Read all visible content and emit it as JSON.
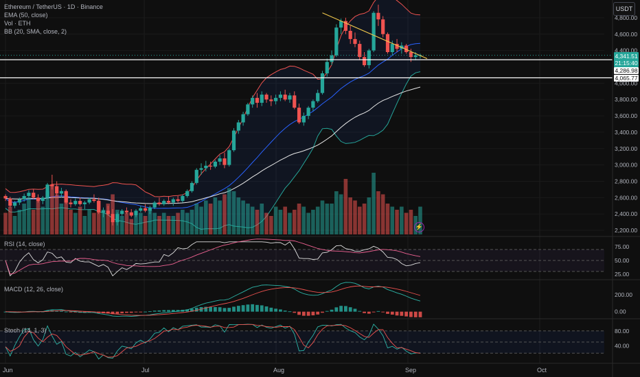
{
  "header": {
    "symbol_line": "Ethereum / TetherUS · 1D · Binance",
    "indicator_lines": [
      "EMA (50, close)",
      "Vol · ETH",
      "BB (20, SMA, close, 2)"
    ],
    "currency_button": "USDT"
  },
  "price_badges": {
    "last_price": "4,341.51",
    "countdown": "21:15:40",
    "line_upper": "4,286.98",
    "line_lower": "4,065.77"
  },
  "panes": {
    "rsi_title": "RSI (14, close)",
    "macd_title": "MACD (12, 26, close)",
    "stoch_title": "Stoch (14, 1, 3)"
  },
  "colors": {
    "background": "#0f0f0f",
    "up": "#26a69a",
    "down": "#ef5350",
    "bb_band": "#ef5350",
    "bb_lower": "#26a69a",
    "bb_basis": "#2962ff",
    "ema": "#e8e8e8",
    "trendline": "#f2c94c",
    "rsi_line": "#e0e0e0",
    "rsi_signal": "#f06292",
    "stoch_k": "#2db5a8",
    "stoch_d": "#ef5350"
  },
  "chart_data": {
    "type": "candlestick",
    "price_axis": {
      "ticks": [
        "4,800.00",
        "4,600.00",
        "4,400.00",
        "4,000.00",
        "3,800.00",
        "3,600.00",
        "3,400.00",
        "3,200.00",
        "3,000.00",
        "2,800.00",
        "2,600.00",
        "2,400.00",
        "2,200.00"
      ],
      "range": [
        2150,
        4950
      ]
    },
    "time_axis": {
      "ticks": [
        "Jun",
        "Jul",
        "Aug",
        "Sep",
        "Oct"
      ]
    },
    "horizontal_levels": [
      4286.98,
      4065.77
    ],
    "candles": [
      [
        2620,
        2640,
        2560,
        2590
      ],
      [
        2590,
        2610,
        2480,
        2500
      ],
      [
        2500,
        2560,
        2470,
        2540
      ],
      [
        2540,
        2600,
        2510,
        2580
      ],
      [
        2580,
        2650,
        2550,
        2620
      ],
      [
        2620,
        2690,
        2600,
        2660
      ],
      [
        2660,
        2700,
        2580,
        2600
      ],
      [
        2600,
        2640,
        2540,
        2560
      ],
      [
        2560,
        2620,
        2520,
        2600
      ],
      [
        2600,
        2780,
        2580,
        2760
      ],
      [
        2760,
        2880,
        2700,
        2740
      ],
      [
        2740,
        2800,
        2620,
        2650
      ],
      [
        2650,
        2720,
        2600,
        2680
      ],
      [
        2680,
        2700,
        2520,
        2540
      ],
      [
        2540,
        2580,
        2480,
        2520
      ],
      [
        2520,
        2590,
        2500,
        2560
      ],
      [
        2560,
        2600,
        2500,
        2520
      ],
      [
        2520,
        2560,
        2460,
        2540
      ],
      [
        2540,
        2600,
        2520,
        2580
      ],
      [
        2580,
        2640,
        2540,
        2560
      ],
      [
        2560,
        2600,
        2400,
        2420
      ],
      [
        2420,
        2480,
        2360,
        2440
      ],
      [
        2440,
        2500,
        2380,
        2400
      ],
      [
        2400,
        2460,
        2260,
        2300
      ],
      [
        2300,
        2420,
        2260,
        2400
      ],
      [
        2400,
        2460,
        2380,
        2440
      ],
      [
        2440,
        2480,
        2400,
        2420
      ],
      [
        2420,
        2460,
        2360,
        2380
      ],
      [
        2380,
        2460,
        2360,
        2440
      ],
      [
        2440,
        2500,
        2420,
        2470
      ],
      [
        2470,
        2520,
        2420,
        2440
      ],
      [
        2440,
        2500,
        2400,
        2480
      ],
      [
        2480,
        2560,
        2460,
        2540
      ],
      [
        2540,
        2600,
        2500,
        2520
      ],
      [
        2520,
        2580,
        2500,
        2560
      ],
      [
        2560,
        2620,
        2520,
        2540
      ],
      [
        2540,
        2600,
        2500,
        2580
      ],
      [
        2580,
        2620,
        2540,
        2560
      ],
      [
        2560,
        2640,
        2540,
        2620
      ],
      [
        2620,
        2700,
        2600,
        2680
      ],
      [
        2680,
        2800,
        2660,
        2780
      ],
      [
        2780,
        2960,
        2760,
        2940
      ],
      [
        2940,
        3020,
        2880,
        2960
      ],
      [
        2960,
        3050,
        2920,
        2990
      ],
      [
        2990,
        3040,
        2940,
        2980
      ],
      [
        2980,
        3060,
        2960,
        3040
      ],
      [
        3040,
        3120,
        3000,
        3080
      ],
      [
        3080,
        3150,
        2960,
        3000
      ],
      [
        3000,
        3200,
        2980,
        3180
      ],
      [
        3180,
        3450,
        3160,
        3420
      ],
      [
        3420,
        3550,
        3380,
        3520
      ],
      [
        3520,
        3650,
        3480,
        3620
      ],
      [
        3620,
        3760,
        3600,
        3740
      ],
      [
        3740,
        3850,
        3700,
        3820
      ],
      [
        3820,
        3880,
        3700,
        3760
      ],
      [
        3760,
        3900,
        3720,
        3860
      ],
      [
        3860,
        3880,
        3760,
        3800
      ],
      [
        3800,
        3850,
        3720,
        3780
      ],
      [
        3780,
        3860,
        3740,
        3820
      ],
      [
        3820,
        3900,
        3780,
        3860
      ],
      [
        3860,
        3920,
        3780,
        3800
      ],
      [
        3800,
        3880,
        3760,
        3850
      ],
      [
        3850,
        3900,
        3680,
        3700
      ],
      [
        3700,
        3750,
        3500,
        3520
      ],
      [
        3520,
        3640,
        3480,
        3600
      ],
      [
        3600,
        3720,
        3560,
        3700
      ],
      [
        3700,
        3800,
        3660,
        3780
      ],
      [
        3780,
        3920,
        3760,
        3880
      ],
      [
        3880,
        4150,
        3860,
        4120
      ],
      [
        4120,
        4300,
        4080,
        4260
      ],
      [
        4260,
        4400,
        4220,
        4340
      ],
      [
        4340,
        4720,
        4320,
        4680
      ],
      [
        4680,
        4790,
        4600,
        4760
      ],
      [
        4760,
        4800,
        4600,
        4640
      ],
      [
        4640,
        4700,
        4480,
        4540
      ],
      [
        4540,
        4620,
        4440,
        4480
      ],
      [
        4480,
        4520,
        4280,
        4320
      ],
      [
        4320,
        4380,
        4200,
        4220
      ],
      [
        4220,
        4420,
        4180,
        4400
      ],
      [
        4400,
        4880,
        4380,
        4860
      ],
      [
        4860,
        4960,
        4700,
        4780
      ],
      [
        4780,
        4820,
        4560,
        4600
      ],
      [
        4600,
        4620,
        4360,
        4380
      ],
      [
        4380,
        4520,
        4340,
        4480
      ],
      [
        4480,
        4540,
        4380,
        4420
      ],
      [
        4420,
        4500,
        4360,
        4460
      ],
      [
        4460,
        4480,
        4360,
        4380
      ],
      [
        4380,
        4420,
        4260,
        4320
      ],
      [
        4320,
        4380,
        4280,
        4340
      ],
      [
        4340,
        4360,
        4300,
        4341.51
      ]
    ],
    "volume": [
      0.35,
      0.45,
      0.3,
      0.4,
      0.5,
      0.6,
      0.4,
      0.55,
      0.45,
      0.7,
      0.8,
      0.65,
      0.5,
      0.6,
      0.4,
      0.35,
      0.45,
      0.3,
      0.4,
      0.35,
      0.55,
      0.4,
      0.5,
      0.65,
      0.4,
      0.3,
      0.35,
      0.25,
      0.3,
      0.35,
      0.3,
      0.4,
      0.35,
      0.3,
      0.35,
      0.3,
      0.3,
      0.35,
      0.4,
      0.35,
      0.4,
      0.5,
      0.45,
      0.55,
      0.5,
      0.6,
      0.55,
      0.65,
      0.75,
      0.7,
      0.6,
      0.55,
      0.5,
      0.45,
      0.4,
      0.5,
      0.35,
      0.3,
      0.45,
      0.4,
      0.45,
      0.35,
      0.4,
      0.5,
      0.45,
      0.35,
      0.4,
      0.45,
      0.55,
      0.5,
      0.5,
      0.7,
      0.65,
      0.9,
      0.6,
      0.55,
      0.45,
      0.5,
      0.6,
      1.0,
      0.7,
      0.65,
      0.5,
      0.45,
      0.4,
      0.45,
      0.35,
      0.4,
      0.3,
      0.45
    ],
    "rsi": {
      "ticks": [
        "75.00",
        "50.00",
        "25.00"
      ],
      "range": [
        20,
        85
      ]
    },
    "macd": {
      "ticks": [
        "200.00",
        "0.00"
      ],
      "range": [
        -60,
        300
      ]
    },
    "stoch": {
      "ticks": [
        "80.00",
        "40.00"
      ],
      "range": [
        0,
        100
      ]
    }
  }
}
